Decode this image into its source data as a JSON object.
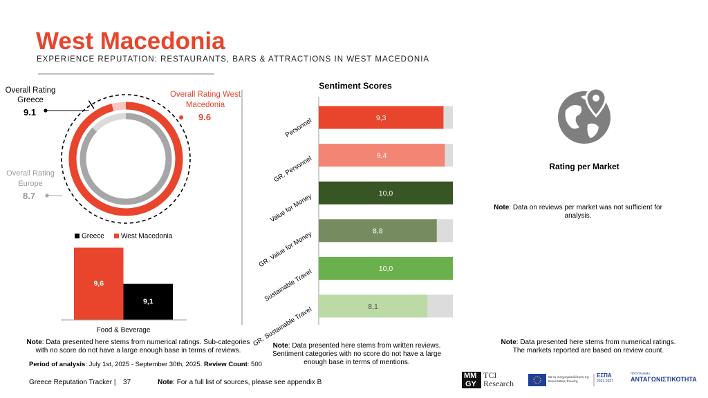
{
  "header": {
    "title": "West Macedonia",
    "subtitle": "EXPERIENCE REPUTATION: RESTAURANTS, BARS & ATTRACTIONS IN WEST MACEDONIA"
  },
  "chart_data": [
    {
      "type": "donut",
      "ylim": [
        0,
        10
      ],
      "series": [
        {
          "name": "Overall Rating West Macedonia",
          "color": "#e8452c",
          "values": [
            9.6
          ]
        },
        {
          "name": "Overall Rating Greece",
          "color": "#000000",
          "values": [
            9.1
          ]
        },
        {
          "name": "Overall Rating Europe",
          "color": "#a6a6a6",
          "values": [
            8.7
          ]
        }
      ]
    },
    {
      "type": "bar",
      "categories": [
        "Food & Beverage"
      ],
      "ylim": [
        8.6,
        9.7
      ],
      "series": [
        {
          "name": "Greece",
          "color": "#000000",
          "values": [
            9.1
          ],
          "value_labels": [
            "9,1"
          ]
        },
        {
          "name": "West Macedonia",
          "color": "#e8452c",
          "values": [
            9.6
          ],
          "value_labels": [
            "9,6"
          ]
        }
      ]
    },
    {
      "type": "hbar",
      "title": "Sentiment Scores",
      "xlim": [
        0,
        10
      ],
      "categories": [
        "Personnel",
        "GR. Personnel",
        "Value for Money",
        "GR. Value for Money",
        "Sustainable Travel",
        "GR. Sustainable Travel"
      ],
      "values": [
        9.3,
        9.4,
        10.0,
        8.8,
        10.0,
        8.1
      ],
      "value_labels": [
        "9,3",
        "9,4",
        "10,0",
        "8,8",
        "10,0",
        "8,1"
      ],
      "colors": [
        "#e8452c",
        "#f28573",
        "#375623",
        "#768c60",
        "#6ab04c",
        "#bcdaa6"
      ]
    }
  ],
  "market": {
    "title": "Rating per Market",
    "note": {
      "label": "Note",
      "text": ": Data on reviews per market was not sufficient for analysis."
    }
  },
  "notes": [
    {
      "label": "Note",
      "text": ": Data presented here stems from numerical ratings. Sub-categories with no score do not have a large enough base in terms of reviews."
    },
    {
      "label": "Note",
      "text": ": Data presented here stems from written reviews. Sentiment categories with no score do not have a large enough base in terms of mentions."
    },
    {
      "label": "Note",
      "text": ": Data presented here stems from numerical ratings. The markets reported are based on review count."
    }
  ],
  "period": {
    "label": "Period of analysis",
    "text": ": July 1st, 2025 - September 30th, 2025. ",
    "count_label": "Review Count",
    "count_text": ": 500"
  },
  "footer": {
    "title": "Greece Reputation Tracker |",
    "page": "37",
    "note": {
      "label": "Note",
      "text": ": For a full list of sources, please see appendix B"
    }
  },
  "logos": {
    "mmgy_top": "MM",
    "mmgy_bottom": "GY",
    "tci": "TCI",
    "research": "Research",
    "eu": "Με τη συγχρηματοδότηση της Ευρωπαϊκής Ένωσης",
    "espa": "ΕΣΠΑ",
    "espa_years": "2021-2027",
    "program": "ΠΡΟΓΡΑΜΜΑ",
    "competitiveness": "ΑΝΤΑΓΩΝΙΣΤΙΚΟΤΗΤΑ"
  }
}
